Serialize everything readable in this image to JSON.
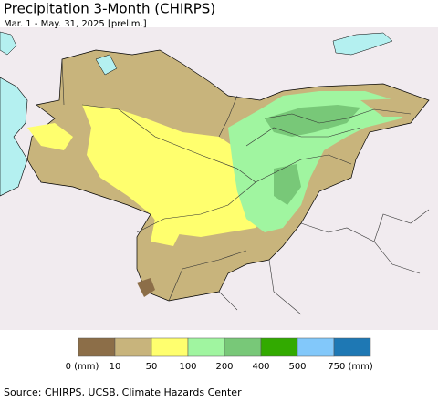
{
  "header": {
    "title": "Precipitation 3-Month (CHIRPS)",
    "subtitle": "Mar. 1 - May. 31, 2025 [prelim.]"
  },
  "legend": {
    "items": [
      {
        "color": "#8c6e48",
        "label": "0 (mm)"
      },
      {
        "color": "#c8b47c",
        "label": "10"
      },
      {
        "color": "#ffff6e",
        "label": "50"
      },
      {
        "color": "#a0f5a0",
        "label": "100"
      },
      {
        "color": "#78c878",
        "label": "200"
      },
      {
        "color": "#32aa00",
        "label": "400"
      },
      {
        "color": "#82c8fa",
        "label": "500"
      },
      {
        "color": "#1e78b4",
        "label": "750 (mm)"
      }
    ]
  },
  "footer": {
    "source": "Source: CHIRPS, UCSB, Climate Hazards Center"
  }
}
